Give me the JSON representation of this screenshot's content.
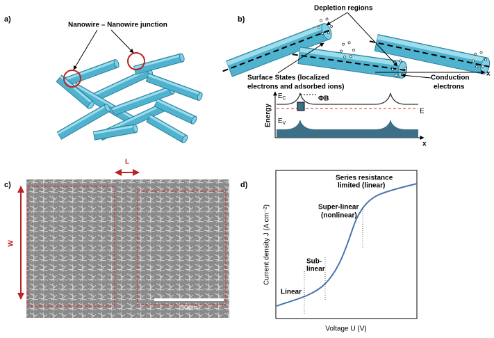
{
  "panels": {
    "a": {
      "label": "a)",
      "junction": "Nanowire – Nanowire junction"
    },
    "b": {
      "label": "b)",
      "depletion": "Depletion regions",
      "surface_states": [
        "Surface States (localized",
        "electrons and adsorbed ions)"
      ],
      "conduction": [
        "Conduction",
        "electrons"
      ],
      "wire_axis": "x",
      "band": {
        "ec": "E",
        "ec_sub": "C",
        "barrier": "ΦB",
        "ef": "E",
        "energy": "Energy",
        "ev": "E",
        "ev_sub": "V",
        "x_axis": "x"
      }
    },
    "c": {
      "label": "c)",
      "gap": "L",
      "width": "W",
      "scale_bar": "30um"
    },
    "d": {
      "label": "d)",
      "regions": {
        "series": [
          "Series resistance",
          "limited  (linear)"
        ],
        "super": [
          "Super-linear",
          "(nonlinear)"
        ],
        "sub": [
          "Sub-",
          "linear"
        ],
        "linear": "Linear"
      },
      "y_axis": "Current density J (A cm⁻²)",
      "x_axis": "Voltage U (V)"
    }
  }
}
